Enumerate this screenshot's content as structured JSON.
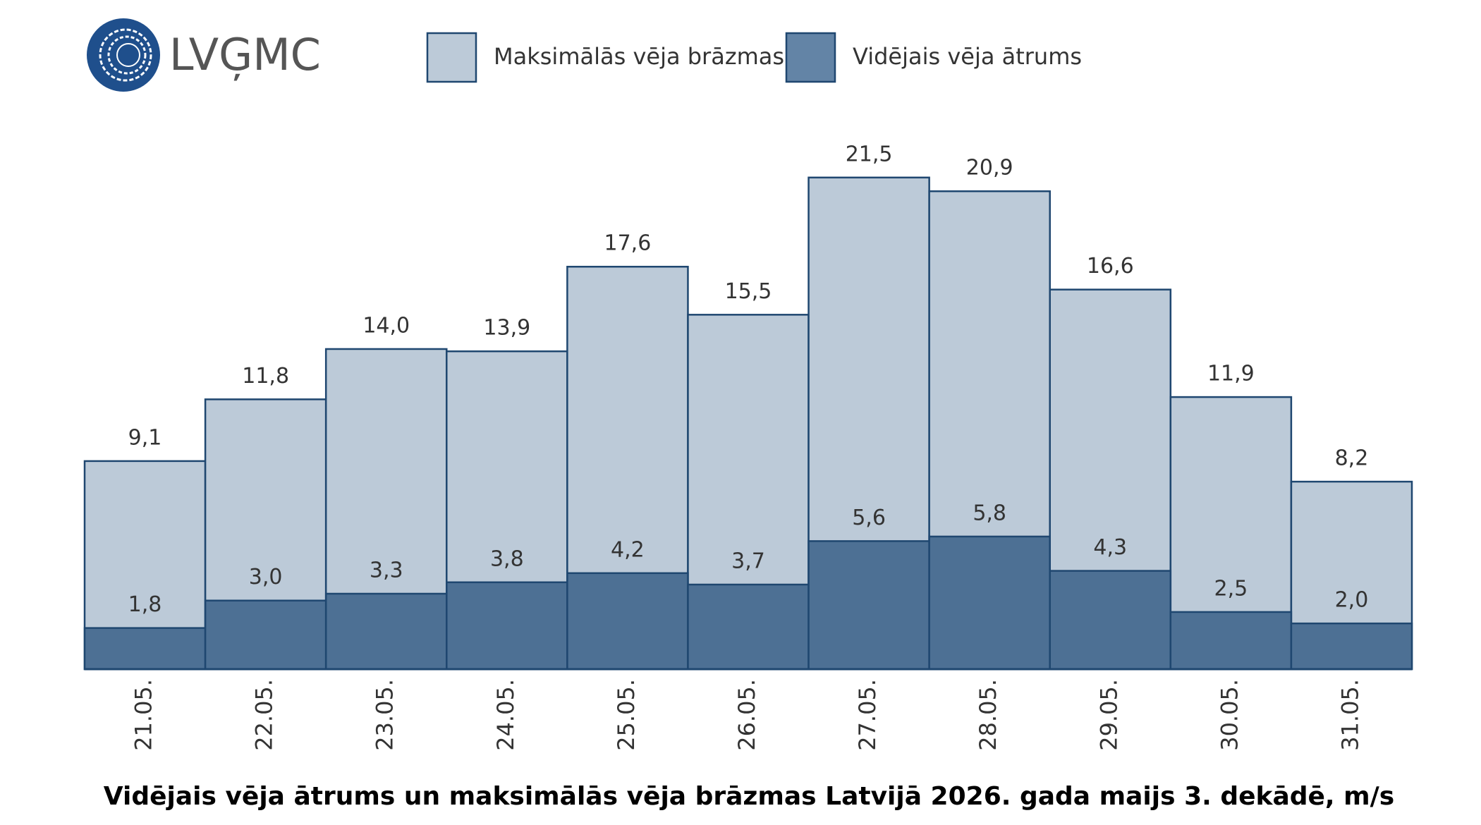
{
  "logo_text": "LVĢMC",
  "chart_data": {
    "type": "overlap-bar",
    "title": "Vidējais vēja ātrums un maksimālās vēja brāzmas Latvijā 2026. gada maijs 3. dekādē, m/s",
    "categories": [
      "21.05.",
      "22.05.",
      "23.05.",
      "24.05.",
      "25.05.",
      "26.05.",
      "27.05.",
      "28.05.",
      "29.05.",
      "30.05.",
      "31.05."
    ],
    "series": [
      {
        "name": "Maksimālās vēja brāzmas",
        "color": "#bccad8",
        "values": [
          9.1,
          11.8,
          14.0,
          13.9,
          17.6,
          15.5,
          21.5,
          20.9,
          16.6,
          11.9,
          8.2
        ],
        "value_labels": [
          "9,1",
          "11,8",
          "14,0",
          "13,9",
          "17,6",
          "15,5",
          "21,5",
          "20,9",
          "16,6",
          "11,9",
          "8,2"
        ]
      },
      {
        "name": "Vidējais vēja ātrums",
        "color": "#4d7094",
        "values": [
          1.8,
          3.0,
          3.3,
          3.8,
          4.2,
          3.7,
          5.6,
          5.8,
          4.3,
          2.5,
          2.0
        ],
        "value_labels": [
          "1,8",
          "3,0",
          "3,3",
          "3,8",
          "4,2",
          "3,7",
          "5,6",
          "5,8",
          "4,3",
          "2,5",
          "2,0"
        ]
      }
    ]
  }
}
